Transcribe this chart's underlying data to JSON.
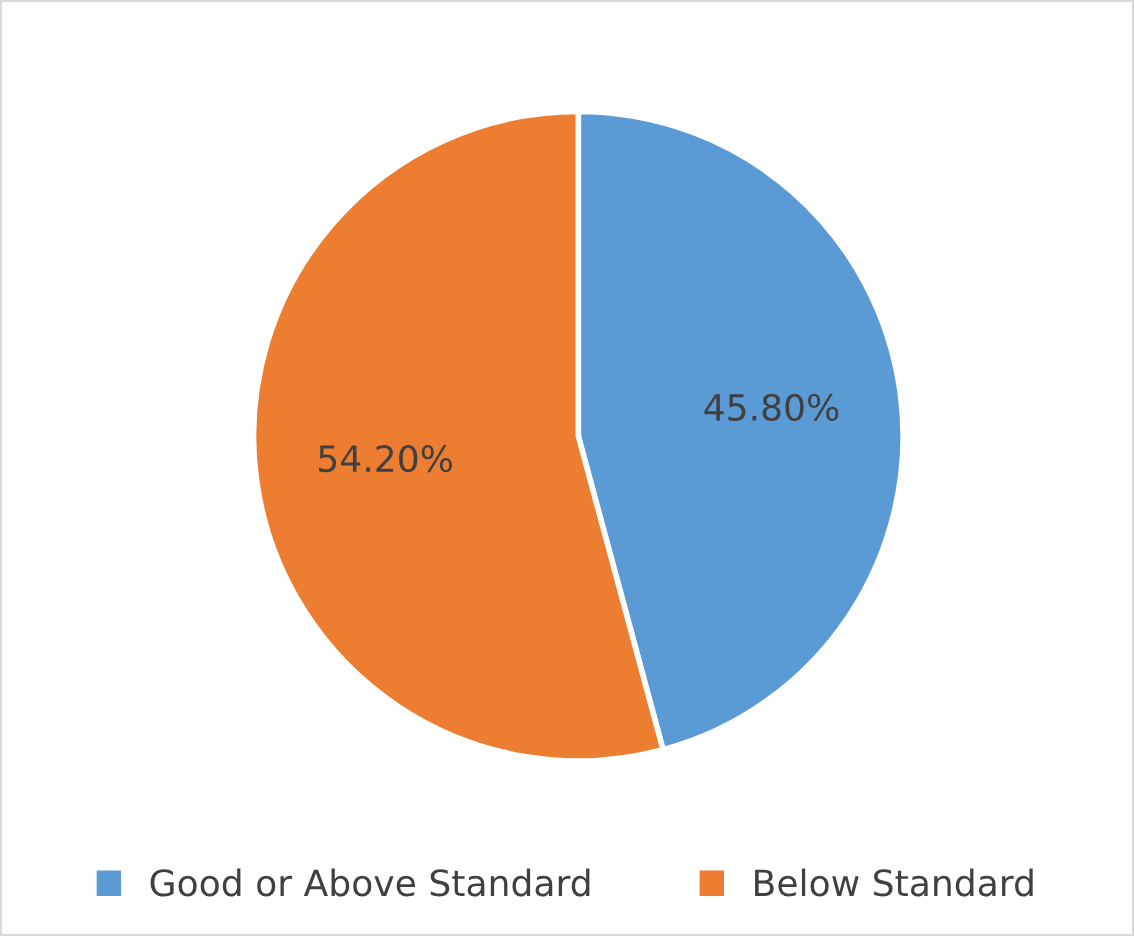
{
  "chart_data": {
    "type": "pie",
    "categories": [
      "Good or Above Standard",
      "Below Standard"
    ],
    "values": [
      45.8,
      54.2
    ],
    "colors": [
      "#5b9bd5",
      "#ed7d31"
    ],
    "value_labels": [
      "45.80%",
      "54.20%"
    ],
    "legend": "bottom"
  }
}
